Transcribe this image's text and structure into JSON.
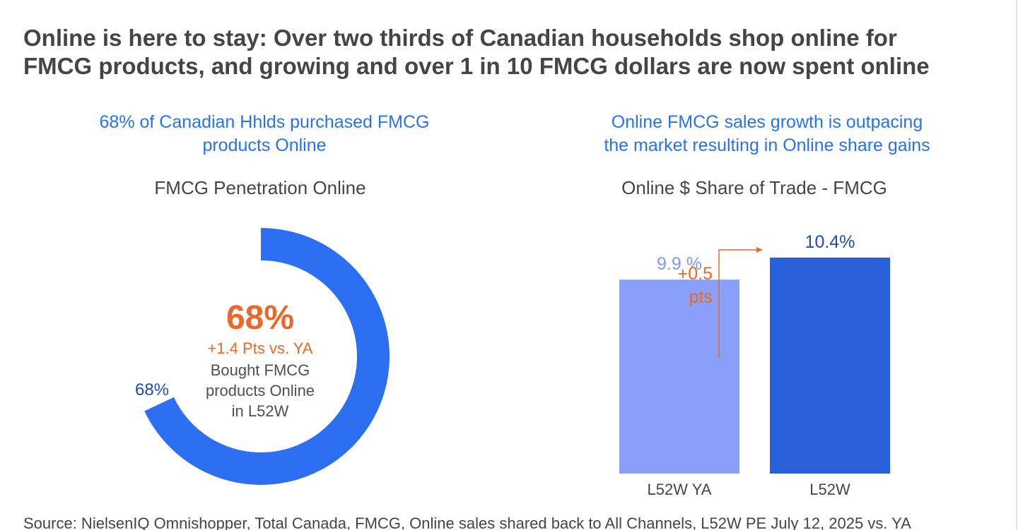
{
  "title_lines": [
    "Online is here to stay: Over two thirds of Canadian households shop online for",
    "FMCG products, and growing and over 1 in 10 FMCG dollars are now spent online"
  ],
  "left_panel": {
    "headline_lines": [
      "68% of Canadian Hhlds purchased FMCG",
      "products Online"
    ],
    "chart_title": "FMCG Penetration Online",
    "center_value": "68%",
    "center_delta": "+1.4 Pts vs. YA",
    "center_desc_lines": [
      "Bought FMCG",
      "products Online",
      "in L52W"
    ],
    "ring_color": "#2c6ff2"
  },
  "right_panel": {
    "headline_lines": [
      "Online FMCG sales growth is outpacing",
      "the market resulting in Online share gains"
    ],
    "chart_title": "Online $ Share of Trade - FMCG",
    "delta_label_lines": [
      "+0.5",
      "pts"
    ],
    "arrow_color": "#e8692a"
  },
  "chart_data": [
    {
      "type": "pie",
      "title": "FMCG Penetration Online",
      "categories": [
        ""
      ],
      "values": [
        68
      ],
      "total": 100,
      "data_labels": [
        "68%"
      ],
      "colors": [
        "#2c6ff2"
      ]
    },
    {
      "type": "bar",
      "title": "Online $ Share of Trade - FMCG",
      "categories": [
        "L52W YA",
        "L52W"
      ],
      "values": [
        9.9,
        10.4
      ],
      "data_labels": [
        "9.9 %",
        "10.4%"
      ],
      "colors": [
        "#8a9ff7",
        "#2760d9"
      ],
      "label_colors": [
        "#7b9af5",
        "#1f4db3"
      ],
      "annotation": "+0.5 pts",
      "grid": false
    }
  ],
  "source": "Source: NielsenIQ Omnishopper, Total Canada, FMCG, Online sales shared back to All Channels, L52W PE July 12, 2025 vs. YA"
}
